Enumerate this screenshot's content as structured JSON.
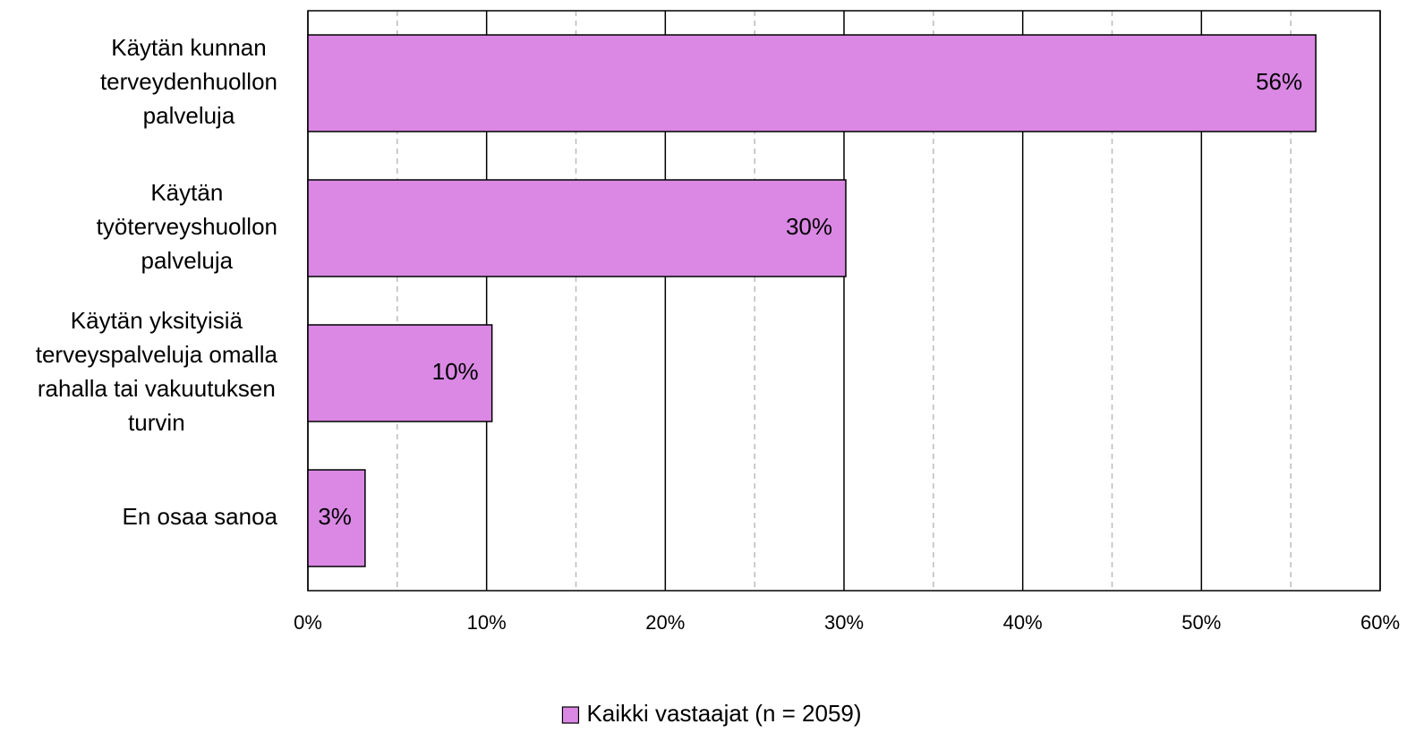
{
  "chart_data": {
    "type": "bar",
    "orientation": "horizontal",
    "categories": [
      "Käytän kunnan\nterveydenhuollon\npalveluja",
      "Käytän\ntyöterveyshuollon\npalveluja",
      "Käytän yksityisiä\nterveyspalveluja omalla\nrahalla tai vakuutuksen\nturvin",
      "En osaa sanoa"
    ],
    "series": [
      {
        "name": "Kaikki vastaajat (n = 2059)",
        "color": "#da88e4",
        "values": [
          56.4,
          30.1,
          10.3,
          3.2
        ],
        "value_labels": [
          "56%",
          "30%",
          "10%",
          "3%"
        ]
      }
    ],
    "xlim": [
      0,
      60
    ],
    "xticks": [
      {
        "value": 0,
        "label": "0%"
      },
      {
        "value": 10,
        "label": "10%"
      },
      {
        "value": 20,
        "label": "20%"
      },
      {
        "value": 30,
        "label": "30%"
      },
      {
        "value": 40,
        "label": "40%"
      },
      {
        "value": 50,
        "label": "50%"
      },
      {
        "value": 60,
        "label": "60%"
      }
    ],
    "xminorticks": [
      5,
      15,
      25,
      35,
      45,
      55
    ],
    "grid": true,
    "legend": "bottom"
  }
}
